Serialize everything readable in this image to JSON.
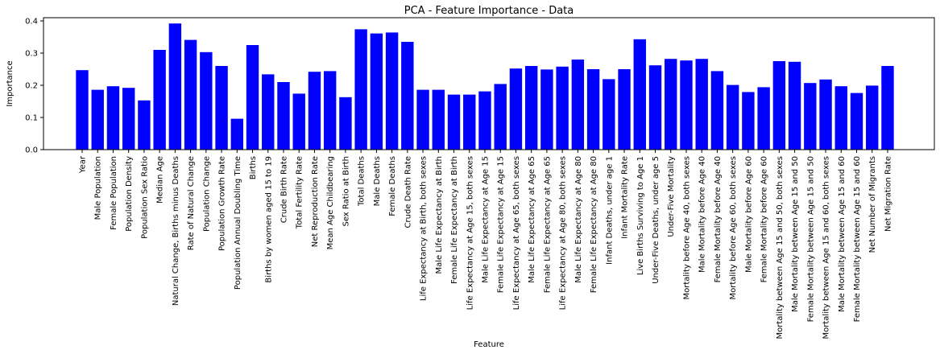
{
  "chart_data": {
    "type": "bar",
    "title": "PCA - Feature Importance - Data",
    "xlabel": "Feature",
    "ylabel": "Importance",
    "ylim": [
      0,
      0.41
    ],
    "yticks": [
      "0.0",
      "0.1",
      "0.2",
      "0.3",
      "0.4"
    ],
    "grid": false,
    "bar_color": "#0000ff",
    "categories": [
      "Year",
      "Male Population",
      "Female Population",
      "Population Density",
      "Population Sex Ratio",
      "Median Age",
      "Natural Change, Births minus Deaths",
      "Rate of Natural Change",
      "Population Change",
      "Population Growth Rate",
      "Population Annual Doubling Time",
      "Births",
      "Births by women aged 15 to 19",
      "Crude Birth Rate",
      "Total Fertility Rate",
      "Net Reproduction Rate",
      "Mean Age Childbearing",
      "Sex Ratio at Birth",
      "Total Deaths",
      "Male Deaths",
      "Female Deaths",
      "Crude Death Rate",
      "Life Expectancy at Birth, both sexes",
      "Male Life Expectancy at Birth",
      "Female Life Expectancy at Birth",
      "Life Expectancy at Age 15, both sexes",
      "Male Life Expectancy at Age 15",
      "Female Life Expectancy at Age 15",
      "Life Expectancy at Age 65, both sexes",
      "Male Life Expectancy at Age 65",
      "Female Life Expectancy at Age 65",
      "Life Expectancy at Age 80, both sexes",
      "Male Life Expectancy at Age 80",
      "Female Life Expectancy at Age 80",
      "Infant Deaths, under age 1",
      "Infant Mortality Rate",
      "Live Births Surviving to Age 1",
      "Under-Five Deaths, under age 5",
      "Under-Five Mortality",
      "Mortality before Age 40, both sexes",
      "Male Mortality before Age 40",
      "Female Mortality before Age 40",
      "Mortality before Age 60, both sexes",
      "Male Mortality before Age 60",
      "Female Mortality before Age 60",
      "Mortality between Age 15 and 50, both sexes",
      "Male Mortality between Age 15 and 50",
      "Female Mortality between Age 15 and 50",
      "Mortality between Age 15 and 60, both sexes",
      "Male Mortality between Age 15 and 60",
      "Female Mortality between Age 15 and 60",
      "Net Number of Migrants",
      "Net Migration Rate"
    ],
    "values": [
      0.247,
      0.186,
      0.197,
      0.192,
      0.153,
      0.31,
      0.392,
      0.341,
      0.303,
      0.26,
      0.096,
      0.325,
      0.234,
      0.21,
      0.174,
      0.242,
      0.244,
      0.163,
      0.374,
      0.361,
      0.364,
      0.335,
      0.186,
      0.186,
      0.171,
      0.171,
      0.181,
      0.204,
      0.252,
      0.26,
      0.249,
      0.258,
      0.28,
      0.25,
      0.219,
      0.25,
      0.343,
      0.262,
      0.282,
      0.277,
      0.282,
      0.244,
      0.201,
      0.179,
      0.194,
      0.275,
      0.273,
      0.207,
      0.218,
      0.197,
      0.176,
      0.199,
      0.26
    ]
  }
}
